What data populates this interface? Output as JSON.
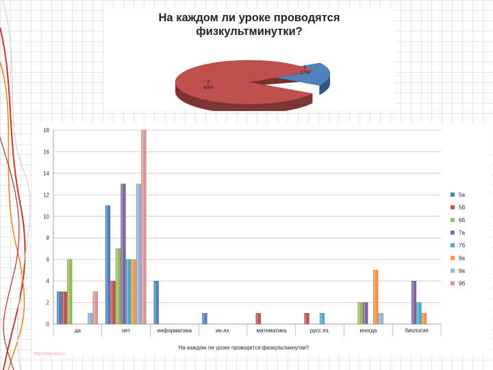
{
  "watermark": "http://slide.pro.ru",
  "chart_data": [
    {
      "type": "pie",
      "title": "На каждом ли уроке проводятся физкультминутки?",
      "labels": [
        "1",
        "2"
      ],
      "values": [
        17,
        83
      ],
      "value_labels": [
        "17%",
        "83%"
      ],
      "colors": [
        "#4f81bd",
        "#c0504d"
      ]
    },
    {
      "type": "bar",
      "xlabel": "На каждом ли уроке проводятся физкультминутки?",
      "categories": [
        "да",
        "нет",
        "информатика",
        "ин.яз.",
        "математика",
        "русс.яз.",
        "иногда",
        "биология"
      ],
      "ylim": [
        0,
        18
      ],
      "yticks": [
        0,
        2,
        4,
        6,
        8,
        10,
        12,
        14,
        16,
        18
      ],
      "grid": true,
      "legend_position": "right",
      "series": [
        {
          "name": "5а",
          "color": "#4f81bd",
          "values": [
            3,
            11,
            4,
            1,
            0,
            0,
            0,
            0
          ]
        },
        {
          "name": "5б",
          "color": "#c0504d",
          "values": [
            3,
            4,
            0,
            0,
            1,
            1,
            0,
            0
          ]
        },
        {
          "name": "6б",
          "color": "#9bbb59",
          "values": [
            6,
            7,
            0,
            0,
            0,
            0,
            2,
            0
          ]
        },
        {
          "name": "7а",
          "color": "#8064a2",
          "values": [
            0,
            13,
            0,
            0,
            0,
            0,
            2,
            4
          ]
        },
        {
          "name": "7б",
          "color": "#4bacc6",
          "values": [
            0,
            6,
            0,
            0,
            0,
            1,
            0,
            2
          ]
        },
        {
          "name": "8а",
          "color": "#f79646",
          "values": [
            0,
            6,
            0,
            0,
            0,
            0,
            5,
            1
          ]
        },
        {
          "name": "9а",
          "color": "#95b3d7",
          "values": [
            1,
            13,
            0,
            0,
            0,
            0,
            1,
            0
          ]
        },
        {
          "name": "9б",
          "color": "#d99694",
          "values": [
            3,
            18,
            0,
            0,
            0,
            0,
            0,
            0
          ]
        }
      ]
    }
  ]
}
